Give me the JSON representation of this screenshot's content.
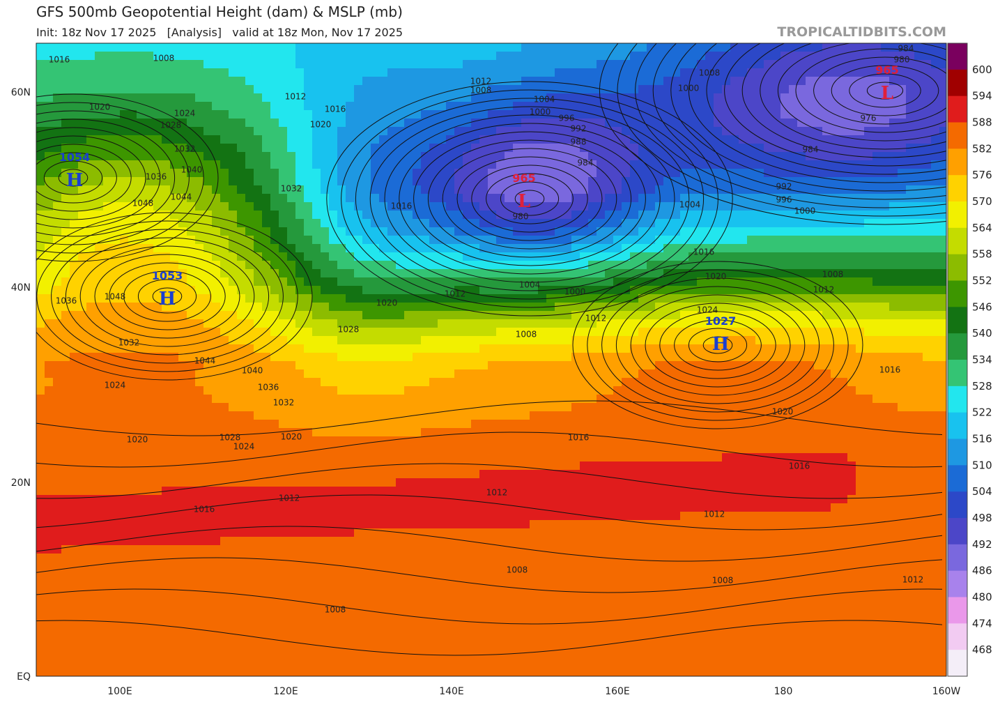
{
  "header": {
    "title": "GFS 500mb Geopotential Height (dam) & MSLP (mb)",
    "subtitle": "Init: 18z Nov 17 2025   [Analysis]   valid at 18z Mon, Nov 17 2025",
    "source": "TROPICALTIDBITS.COM"
  },
  "map": {
    "lat_labels": [
      "60N",
      "40N",
      "20N",
      "EQ"
    ],
    "lon_labels": [
      "100E",
      "120E",
      "140E",
      "160E",
      "180",
      "160W"
    ],
    "centers": [
      {
        "kind": "H",
        "value": 1054
      },
      {
        "kind": "H",
        "value": 1053
      },
      {
        "kind": "L",
        "value": 965
      },
      {
        "kind": "L",
        "value": 965
      },
      {
        "kind": "H",
        "value": 1027
      }
    ],
    "isobar_labels": [
      "1016",
      "1008",
      "1020",
      "1024",
      "1028",
      "1032",
      "1036",
      "1040",
      "1044",
      "1048",
      "1032",
      "1012",
      "1016",
      "1020",
      "1016",
      "1012",
      "1008",
      "1004",
      "1000",
      "996",
      "992",
      "988",
      "984",
      "980",
      "1008",
      "1000",
      "984",
      "976",
      "984",
      "980",
      "992",
      "996",
      "1000",
      "1004",
      "1016",
      "1020",
      "1024",
      "1008",
      "1012",
      "1004",
      "1000",
      "1012",
      "1008",
      "1012",
      "1020",
      "1028",
      "1036",
      "1048",
      "1032",
      "1044",
      "1040",
      "1036",
      "1032",
      "1024",
      "1028",
      "1024",
      "1020",
      "1020",
      "1016",
      "1012",
      "1016",
      "1016",
      "1012",
      "1012",
      "1008",
      "1008",
      "1012",
      "1008",
      "1016",
      "1020"
    ]
  },
  "colorbar": {
    "levels": [
      600,
      594,
      588,
      582,
      576,
      570,
      564,
      558,
      552,
      546,
      540,
      534,
      528,
      522,
      516,
      510,
      504,
      498,
      492,
      486,
      480,
      474,
      468
    ],
    "colors": [
      "#7a005e",
      "#a00000",
      "#e01c1c",
      "#f46a00",
      "#ffa000",
      "#ffd200",
      "#f2f000",
      "#c4dc00",
      "#8cbc00",
      "#3d9600",
      "#137313",
      "#25993c",
      "#34c474",
      "#22e6ee",
      "#18c2ef",
      "#1e98e2",
      "#1b6bd6",
      "#2c48c8",
      "#4c46c8",
      "#7a68de",
      "#a882ec",
      "#ea98ea",
      "#f2cbf2",
      "#f4eef8"
    ]
  }
}
